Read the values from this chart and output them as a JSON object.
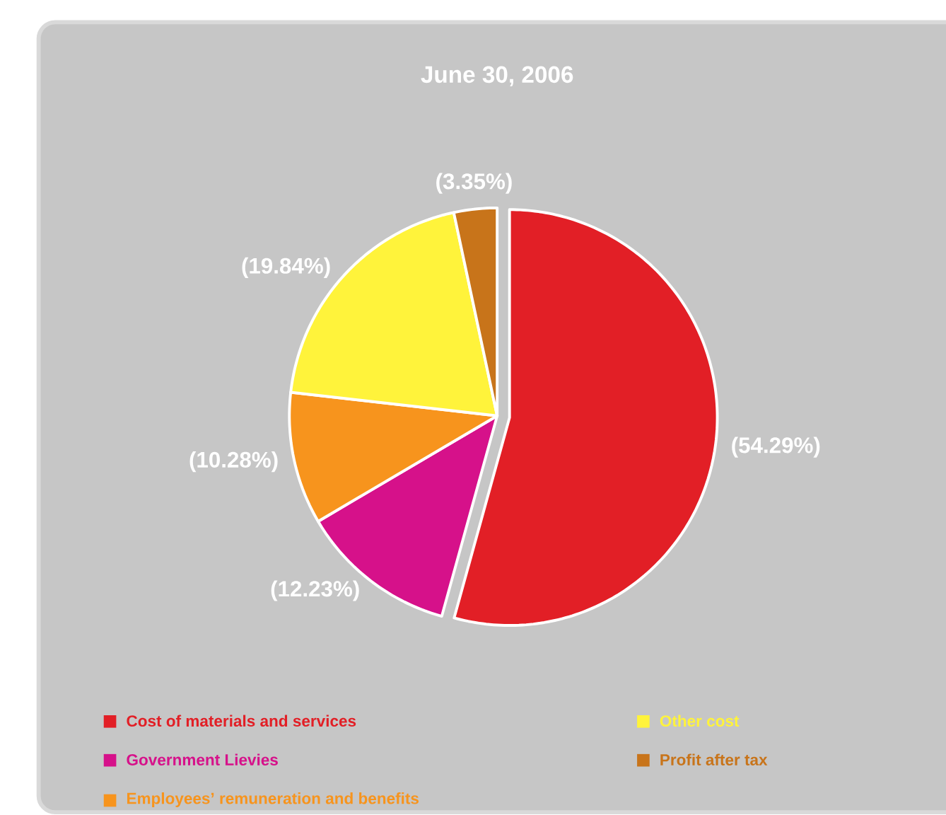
{
  "chart_data": {
    "type": "pie",
    "title": "June 30, 2006",
    "categories": [
      "Cost of materials and services",
      "Government Lievies",
      "Employees’ remuneration and benefits",
      "Other cost",
      "Profit after tax"
    ],
    "values": [
      54.29,
      12.23,
      10.28,
      19.84,
      3.35
    ],
    "value_labels": [
      "(54.29%)",
      "(12.23%)",
      "(10.28%)",
      "(19.84%)",
      "(3.35%)"
    ],
    "colors": [
      "#e21f26",
      "#d6118a",
      "#f7941d",
      "#fff33b",
      "#c8741a"
    ],
    "legend": "bottom"
  }
}
